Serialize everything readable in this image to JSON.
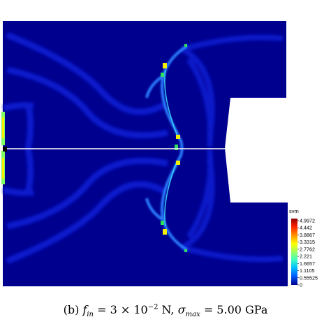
{
  "figure": {
    "field_name": "svm",
    "colorbar": {
      "title": "svm",
      "ticks": [
        "4.9972",
        "4.442",
        "3.8867",
        "3.3315",
        "2.7762",
        "2.221",
        "1.6657",
        "1.1105",
        "0.55525",
        "0"
      ],
      "colors": [
        "#000090",
        "#0000ff",
        "#0060ff",
        "#00c0ff",
        "#40ffc0",
        "#a0ff60",
        "#ffff00",
        "#ff9000",
        "#ff2000",
        "#900000"
      ]
    },
    "colors": {
      "background": "#00008f",
      "band": "#0a1fd0",
      "band_bright": "#1f6fff",
      "hot_yellow": "#f5f000",
      "hot_green": "#30e060",
      "symmetry_line": "#ffffff"
    }
  },
  "caption": {
    "label": "(b)",
    "var": "f",
    "var_sub": "in",
    "eq1": "= 3 × 10",
    "exp": "−2",
    "unit1": "N,",
    "sigma": "σ",
    "sigma_sub": "max",
    "eq2": "= 5.00 GPa"
  }
}
